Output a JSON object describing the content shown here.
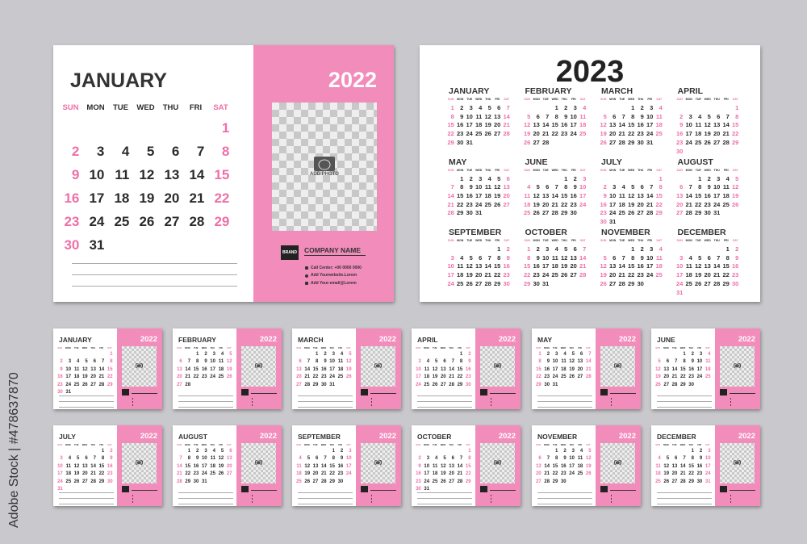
{
  "colors": {
    "pink": "#f28cbb",
    "weekend": "#ee6fa8",
    "text": "#2b2b2b",
    "background": "#c9c9cd"
  },
  "day_headers": [
    "SUN",
    "MON",
    "TUE",
    "WED",
    "THU",
    "FRI",
    "SAT"
  ],
  "weekend_columns": [
    0,
    6
  ],
  "company": {
    "brand": "BRAND",
    "name": "COMPANY NAME",
    "phone": "Call Center: +00 0000 0000",
    "website": "Add Yourwebsite.Lorem",
    "email": "Add Your-email@Lorem",
    "icons": [
      "phone-icon",
      "globe-icon",
      "mail-icon"
    ]
  },
  "photo": {
    "label": "ADD PHOTO",
    "icon": "camera-icon"
  },
  "featured": {
    "month": "JANUARY",
    "year": "2022",
    "first_weekday": 6,
    "days": 31
  },
  "year_2023": {
    "year": "2023",
    "months": [
      {
        "name": "JANUARY",
        "first_weekday": 0,
        "days": 31
      },
      {
        "name": "FEBRUARY",
        "first_weekday": 3,
        "days": 28
      },
      {
        "name": "MARCH",
        "first_weekday": 3,
        "days": 31
      },
      {
        "name": "APRIL",
        "first_weekday": 6,
        "days": 30
      },
      {
        "name": "MAY",
        "first_weekday": 1,
        "days": 31
      },
      {
        "name": "JUNE",
        "first_weekday": 4,
        "days": 30
      },
      {
        "name": "JULY",
        "first_weekday": 6,
        "days": 31
      },
      {
        "name": "AUGUST",
        "first_weekday": 2,
        "days": 31
      },
      {
        "name": "SEPTEMBER",
        "first_weekday": 5,
        "days": 30
      },
      {
        "name": "OCTOBER",
        "first_weekday": 0,
        "days": 31
      },
      {
        "name": "NOVEMBER",
        "first_weekday": 3,
        "days": 30
      },
      {
        "name": "DECEMBER",
        "first_weekday": 5,
        "days": 31
      }
    ]
  },
  "small_2022": {
    "year": "2022",
    "months": [
      {
        "name": "JANUARY",
        "first_weekday": 6,
        "days": 31
      },
      {
        "name": "FEBRUARY",
        "first_weekday": 2,
        "days": 28
      },
      {
        "name": "MARCH",
        "first_weekday": 2,
        "days": 31
      },
      {
        "name": "APRIL",
        "first_weekday": 5,
        "days": 30
      },
      {
        "name": "MAY",
        "first_weekday": 0,
        "days": 31
      },
      {
        "name": "JUNE",
        "first_weekday": 3,
        "days": 30
      },
      {
        "name": "JULY",
        "first_weekday": 5,
        "days": 31
      },
      {
        "name": "AUGUST",
        "first_weekday": 1,
        "days": 31
      },
      {
        "name": "SEPTEMBER",
        "first_weekday": 4,
        "days": 30
      },
      {
        "name": "OCTOBER",
        "first_weekday": 6,
        "days": 31
      },
      {
        "name": "NOVEMBER",
        "first_weekday": 2,
        "days": 30
      },
      {
        "name": "DECEMBER",
        "first_weekday": 4,
        "days": 31
      }
    ]
  },
  "watermark": "Adobe Stock | #478637870"
}
